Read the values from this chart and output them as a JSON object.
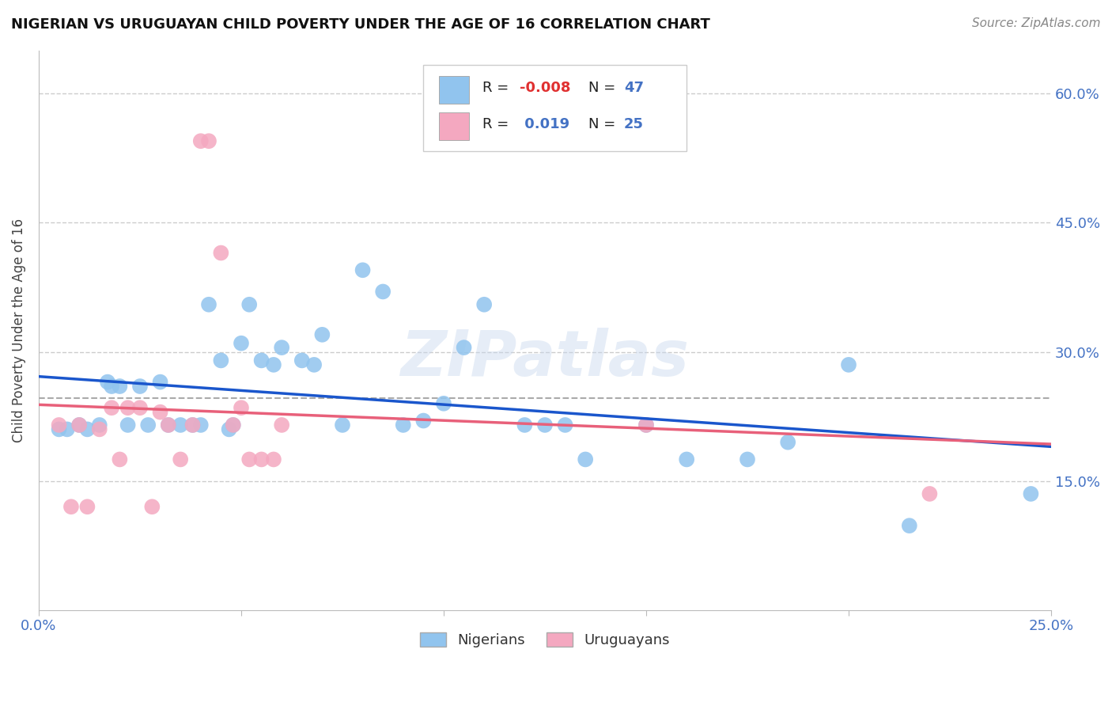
{
  "title": "NIGERIAN VS URUGUAYAN CHILD POVERTY UNDER THE AGE OF 16 CORRELATION CHART",
  "source": "Source: ZipAtlas.com",
  "ylabel": "Child Poverty Under the Age of 16",
  "xlim": [
    0.0,
    0.25
  ],
  "ylim": [
    0.0,
    0.65
  ],
  "nigerian_color": "#91C4EE",
  "uruguayan_color": "#F4A8C0",
  "nigerian_line_color": "#1A56CC",
  "uruguayan_line_color": "#E8607A",
  "label_color": "#4472C4",
  "bg_color": "#FFFFFF",
  "grid_color": "#CCCCCC",
  "nigerian_x": [
    0.005,
    0.007,
    0.01,
    0.012,
    0.015,
    0.017,
    0.018,
    0.02,
    0.022,
    0.025,
    0.027,
    0.03,
    0.032,
    0.035,
    0.038,
    0.04,
    0.042,
    0.045,
    0.047,
    0.048,
    0.05,
    0.052,
    0.055,
    0.058,
    0.06,
    0.065,
    0.068,
    0.07,
    0.075,
    0.08,
    0.085,
    0.09,
    0.095,
    0.1,
    0.105,
    0.11,
    0.12,
    0.125,
    0.13,
    0.135,
    0.15,
    0.16,
    0.175,
    0.185,
    0.2,
    0.215,
    0.245
  ],
  "nigerian_y": [
    0.21,
    0.21,
    0.215,
    0.21,
    0.215,
    0.265,
    0.26,
    0.26,
    0.215,
    0.26,
    0.215,
    0.265,
    0.215,
    0.215,
    0.215,
    0.215,
    0.355,
    0.29,
    0.21,
    0.215,
    0.31,
    0.355,
    0.29,
    0.285,
    0.305,
    0.29,
    0.285,
    0.32,
    0.215,
    0.395,
    0.37,
    0.215,
    0.22,
    0.24,
    0.305,
    0.355,
    0.215,
    0.215,
    0.215,
    0.175,
    0.215,
    0.175,
    0.175,
    0.195,
    0.285,
    0.098,
    0.135
  ],
  "uruguayan_x": [
    0.005,
    0.008,
    0.01,
    0.012,
    0.015,
    0.018,
    0.02,
    0.022,
    0.025,
    0.028,
    0.03,
    0.032,
    0.035,
    0.038,
    0.04,
    0.042,
    0.045,
    0.048,
    0.05,
    0.052,
    0.055,
    0.058,
    0.06,
    0.15,
    0.22
  ],
  "uruguayan_y": [
    0.215,
    0.12,
    0.215,
    0.12,
    0.21,
    0.235,
    0.175,
    0.235,
    0.235,
    0.12,
    0.23,
    0.215,
    0.175,
    0.215,
    0.545,
    0.545,
    0.415,
    0.215,
    0.235,
    0.175,
    0.175,
    0.175,
    0.215,
    0.215,
    0.135
  ]
}
